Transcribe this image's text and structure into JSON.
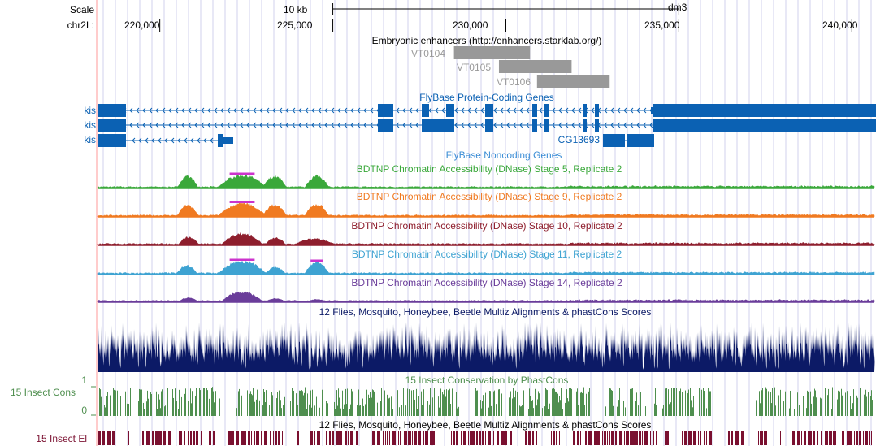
{
  "ruler": {
    "scale_label": "Scale",
    "chrom_label": "chr2L:",
    "scale_bar_label": "10 kb",
    "assembly": "dm3",
    "ticks": [
      {
        "label": "220,000",
        "pos": 220000
      },
      {
        "label": "225,000",
        "pos": 225000
      },
      {
        "label": "230,000",
        "pos": 230000
      },
      {
        "label": "235,000",
        "pos": 235000
      },
      {
        "label": "240,000",
        "pos": 240000
      }
    ],
    "scale_bar_start": 225000,
    "scale_bar_end": 235000
  },
  "colors": {
    "enhancer": "#999999",
    "gene": "#0b61b3",
    "stage5": "#3aa83a",
    "stage9": "#f07a21",
    "stage10": "#8e1e2d",
    "stage11": "#3ea3d2",
    "stage14": "#6a3d9a",
    "peak_top": "#cc33cc",
    "multiz": "#0c1a66",
    "phastcons": "#4f8f4f",
    "elements": "#7a1030",
    "grid": "#d0d0ee",
    "left_line": "#ff9999"
  },
  "tracks": {
    "enhancers": {
      "title": "Embryonic enhancers (http://enhancers.starklab.org/)",
      "items": [
        {
          "name": "VT0104",
          "start": 228500,
          "end": 230700
        },
        {
          "name": "VT0105",
          "start": 229800,
          "end": 231900
        },
        {
          "name": "VT0106",
          "start": 230900,
          "end": 233000
        }
      ]
    },
    "genes": {
      "title": "FlyBase Protein-Coding Genes",
      "rows": [
        {
          "label": "kis"
        },
        {
          "label": "kis"
        },
        {
          "label": "kis"
        }
      ],
      "extra_label": "CG13693"
    },
    "noncoding": {
      "title": "FlyBase Noncoding Genes"
    },
    "dnase": [
      {
        "title": "BDTNP Chromatin Accessibility (DNase) Stage 5, Replicate 2",
        "key": "stage5"
      },
      {
        "title": "BDTNP Chromatin Accessibility (DNase) Stage 9, Replicate 2",
        "key": "stage9"
      },
      {
        "title": "BDTNP Chromatin Accessibility (DNase) Stage 10, Replicate 2",
        "key": "stage10"
      },
      {
        "title": "BDTNP Chromatin Accessibility (DNase) Stage 11, Replicate 2",
        "key": "stage11"
      },
      {
        "title": "BDTNP Chromatin Accessibility (DNase) Stage 14, Replicate 2",
        "key": "stage14"
      }
    ],
    "multiz": {
      "title": "12 Flies, Mosquito, Honeybee, Beetle Multiz Alignments & phastCons Scores"
    },
    "phastcons": {
      "title": "15 Insect Conservation by PhastCons",
      "side_label": "15 Insect Cons",
      "axis_max": "1",
      "axis_min": "0"
    },
    "elements": {
      "title": "12 Flies, Mosquito, Honeybee, Beetle Multiz Alignments & phastCons Scores",
      "side_label": "15 Insect El"
    }
  }
}
